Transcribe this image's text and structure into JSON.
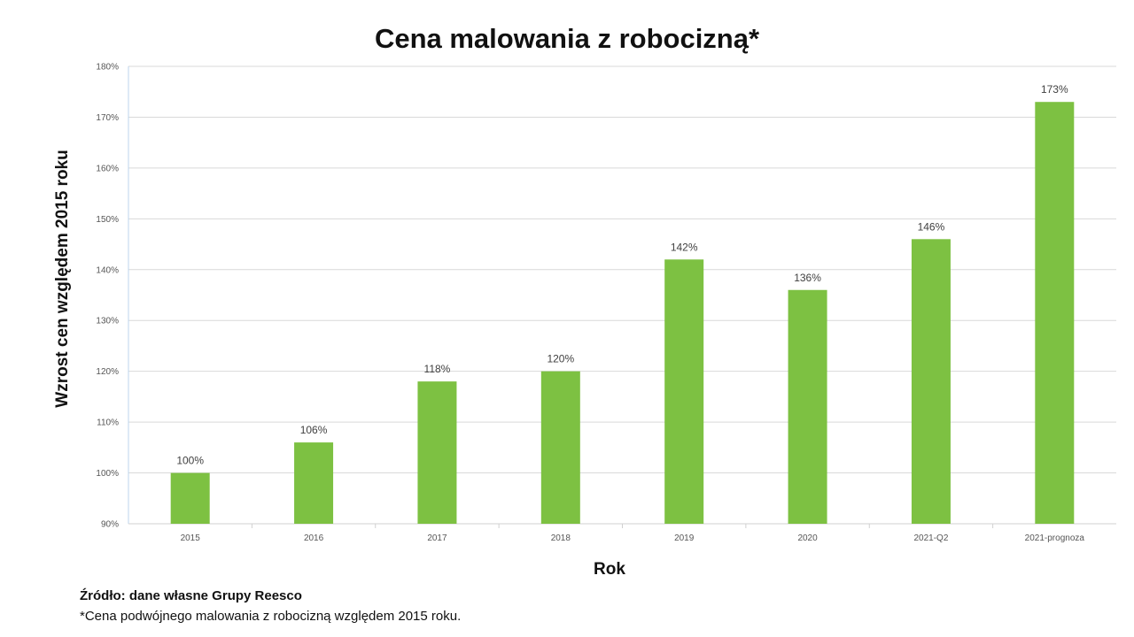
{
  "chart_data": {
    "type": "bar",
    "title": "Cena malowania z robocizną*",
    "xlabel": "Rok",
    "ylabel": "Wzrost cen względem 2015 roku",
    "categories": [
      "2015",
      "2016",
      "2017",
      "2018",
      "2019",
      "2020",
      "2021-Q2",
      "2021-prognoza"
    ],
    "values": [
      100,
      106,
      118,
      120,
      142,
      136,
      146,
      173
    ],
    "data_labels": [
      "100%",
      "106%",
      "118%",
      "120%",
      "142%",
      "136%",
      "146%",
      "173%"
    ],
    "ylim": [
      90,
      180
    ],
    "y_ticks": [
      90,
      100,
      110,
      120,
      130,
      140,
      150,
      160,
      170,
      180
    ],
    "y_tick_labels": [
      "90%",
      "100%",
      "110%",
      "120%",
      "130%",
      "140%",
      "150%",
      "160%",
      "170%",
      "180%"
    ],
    "grid": true,
    "legend": "none",
    "bar_color": "#7dc142",
    "grid_color": "#d9d9d9"
  },
  "footer": {
    "source": "Źródło: dane własne Grupy Reesco",
    "note": "*Cena podwójnego malowania z robocizną względem 2015 roku."
  }
}
